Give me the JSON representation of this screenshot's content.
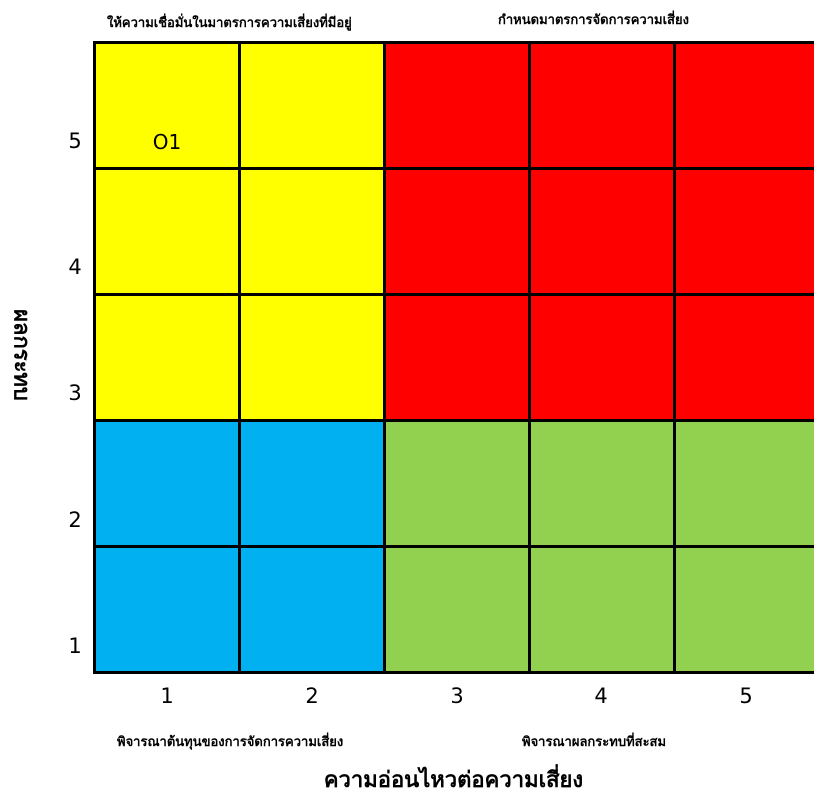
{
  "zones": {
    "top_left": "ให้ความเชื่อมั่นในมาตรการความเสี่ยงที่มีอยู่",
    "top_right": "กำหนดมาตรการจัดการความเสี่ยง",
    "bottom_left": "พิจารณาต้นทุนของการจัดการความเสี่ยง",
    "bottom_right": "พิจารณาผลกระทบที่สะสม"
  },
  "axes": {
    "x_title": "ความอ่อนไหวต่อความเสี่ยง",
    "y_title": "ผลกระทบ",
    "x_ticks": [
      "1",
      "2",
      "3",
      "4",
      "5"
    ],
    "y_ticks": [
      "5",
      "4",
      "3",
      "2",
      "1"
    ]
  },
  "colors": {
    "yellow": "#ffff00",
    "red": "#ff0000",
    "blue": "#00b0f0",
    "green": "#92d050"
  },
  "grid": {
    "rows": 5,
    "cols": 5,
    "cells": [
      [
        "yellow",
        "yellow",
        "red",
        "red",
        "red"
      ],
      [
        "yellow",
        "yellow",
        "red",
        "red",
        "red"
      ],
      [
        "yellow",
        "yellow",
        "red",
        "red",
        "red"
      ],
      [
        "blue",
        "blue",
        "green",
        "green",
        "green"
      ],
      [
        "blue",
        "blue",
        "green",
        "green",
        "green"
      ]
    ]
  },
  "markers": [
    {
      "label": "O1",
      "impact": 5,
      "sensitivity": 1
    }
  ]
}
